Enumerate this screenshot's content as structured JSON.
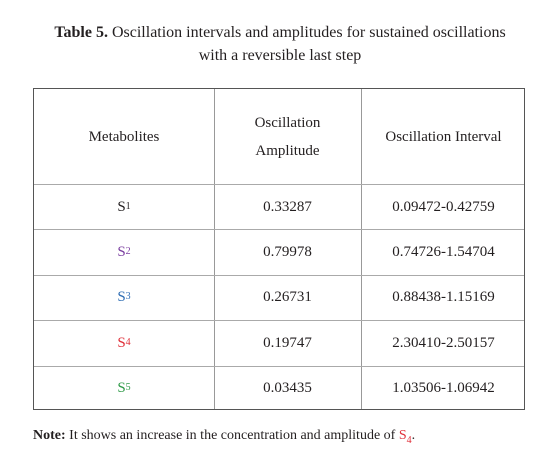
{
  "caption": {
    "label": "Table 5.",
    "text_line1": "Oscillation intervals and amplitudes for sustained oscillations",
    "text_line2": "with a reversible last step"
  },
  "table": {
    "header": {
      "metabolites": "Metabolites",
      "amplitude_line1": "Oscillation",
      "amplitude_line2": "Amplitude",
      "interval": "Oscillation Interval"
    },
    "rows": [
      {
        "symbol": "S",
        "subscript": "1",
        "color": "#231f20",
        "amplitude": "0.33287",
        "interval": "0.09472-0.42759"
      },
      {
        "symbol": "S",
        "subscript": "2",
        "color": "#7b3fa0",
        "amplitude": "0.79978",
        "interval": "0.74726-1.54704"
      },
      {
        "symbol": "S",
        "subscript": "3",
        "color": "#2e6db4",
        "amplitude": "0.26731",
        "interval": "0.88438-1.15169"
      },
      {
        "symbol": "S",
        "subscript": "4",
        "color": "#e0303a",
        "amplitude": "0.19747",
        "interval": "2.30410-2.50157"
      },
      {
        "symbol": "S",
        "subscript": "5",
        "color": "#2f9a48",
        "amplitude": "0.03435",
        "interval": "1.03506-1.06942"
      }
    ]
  },
  "note": {
    "label": "Note:",
    "text": "It shows an increase in the concentration and amplitude of",
    "symbol": "S",
    "subscript": "4",
    "color": "#e0303a"
  }
}
